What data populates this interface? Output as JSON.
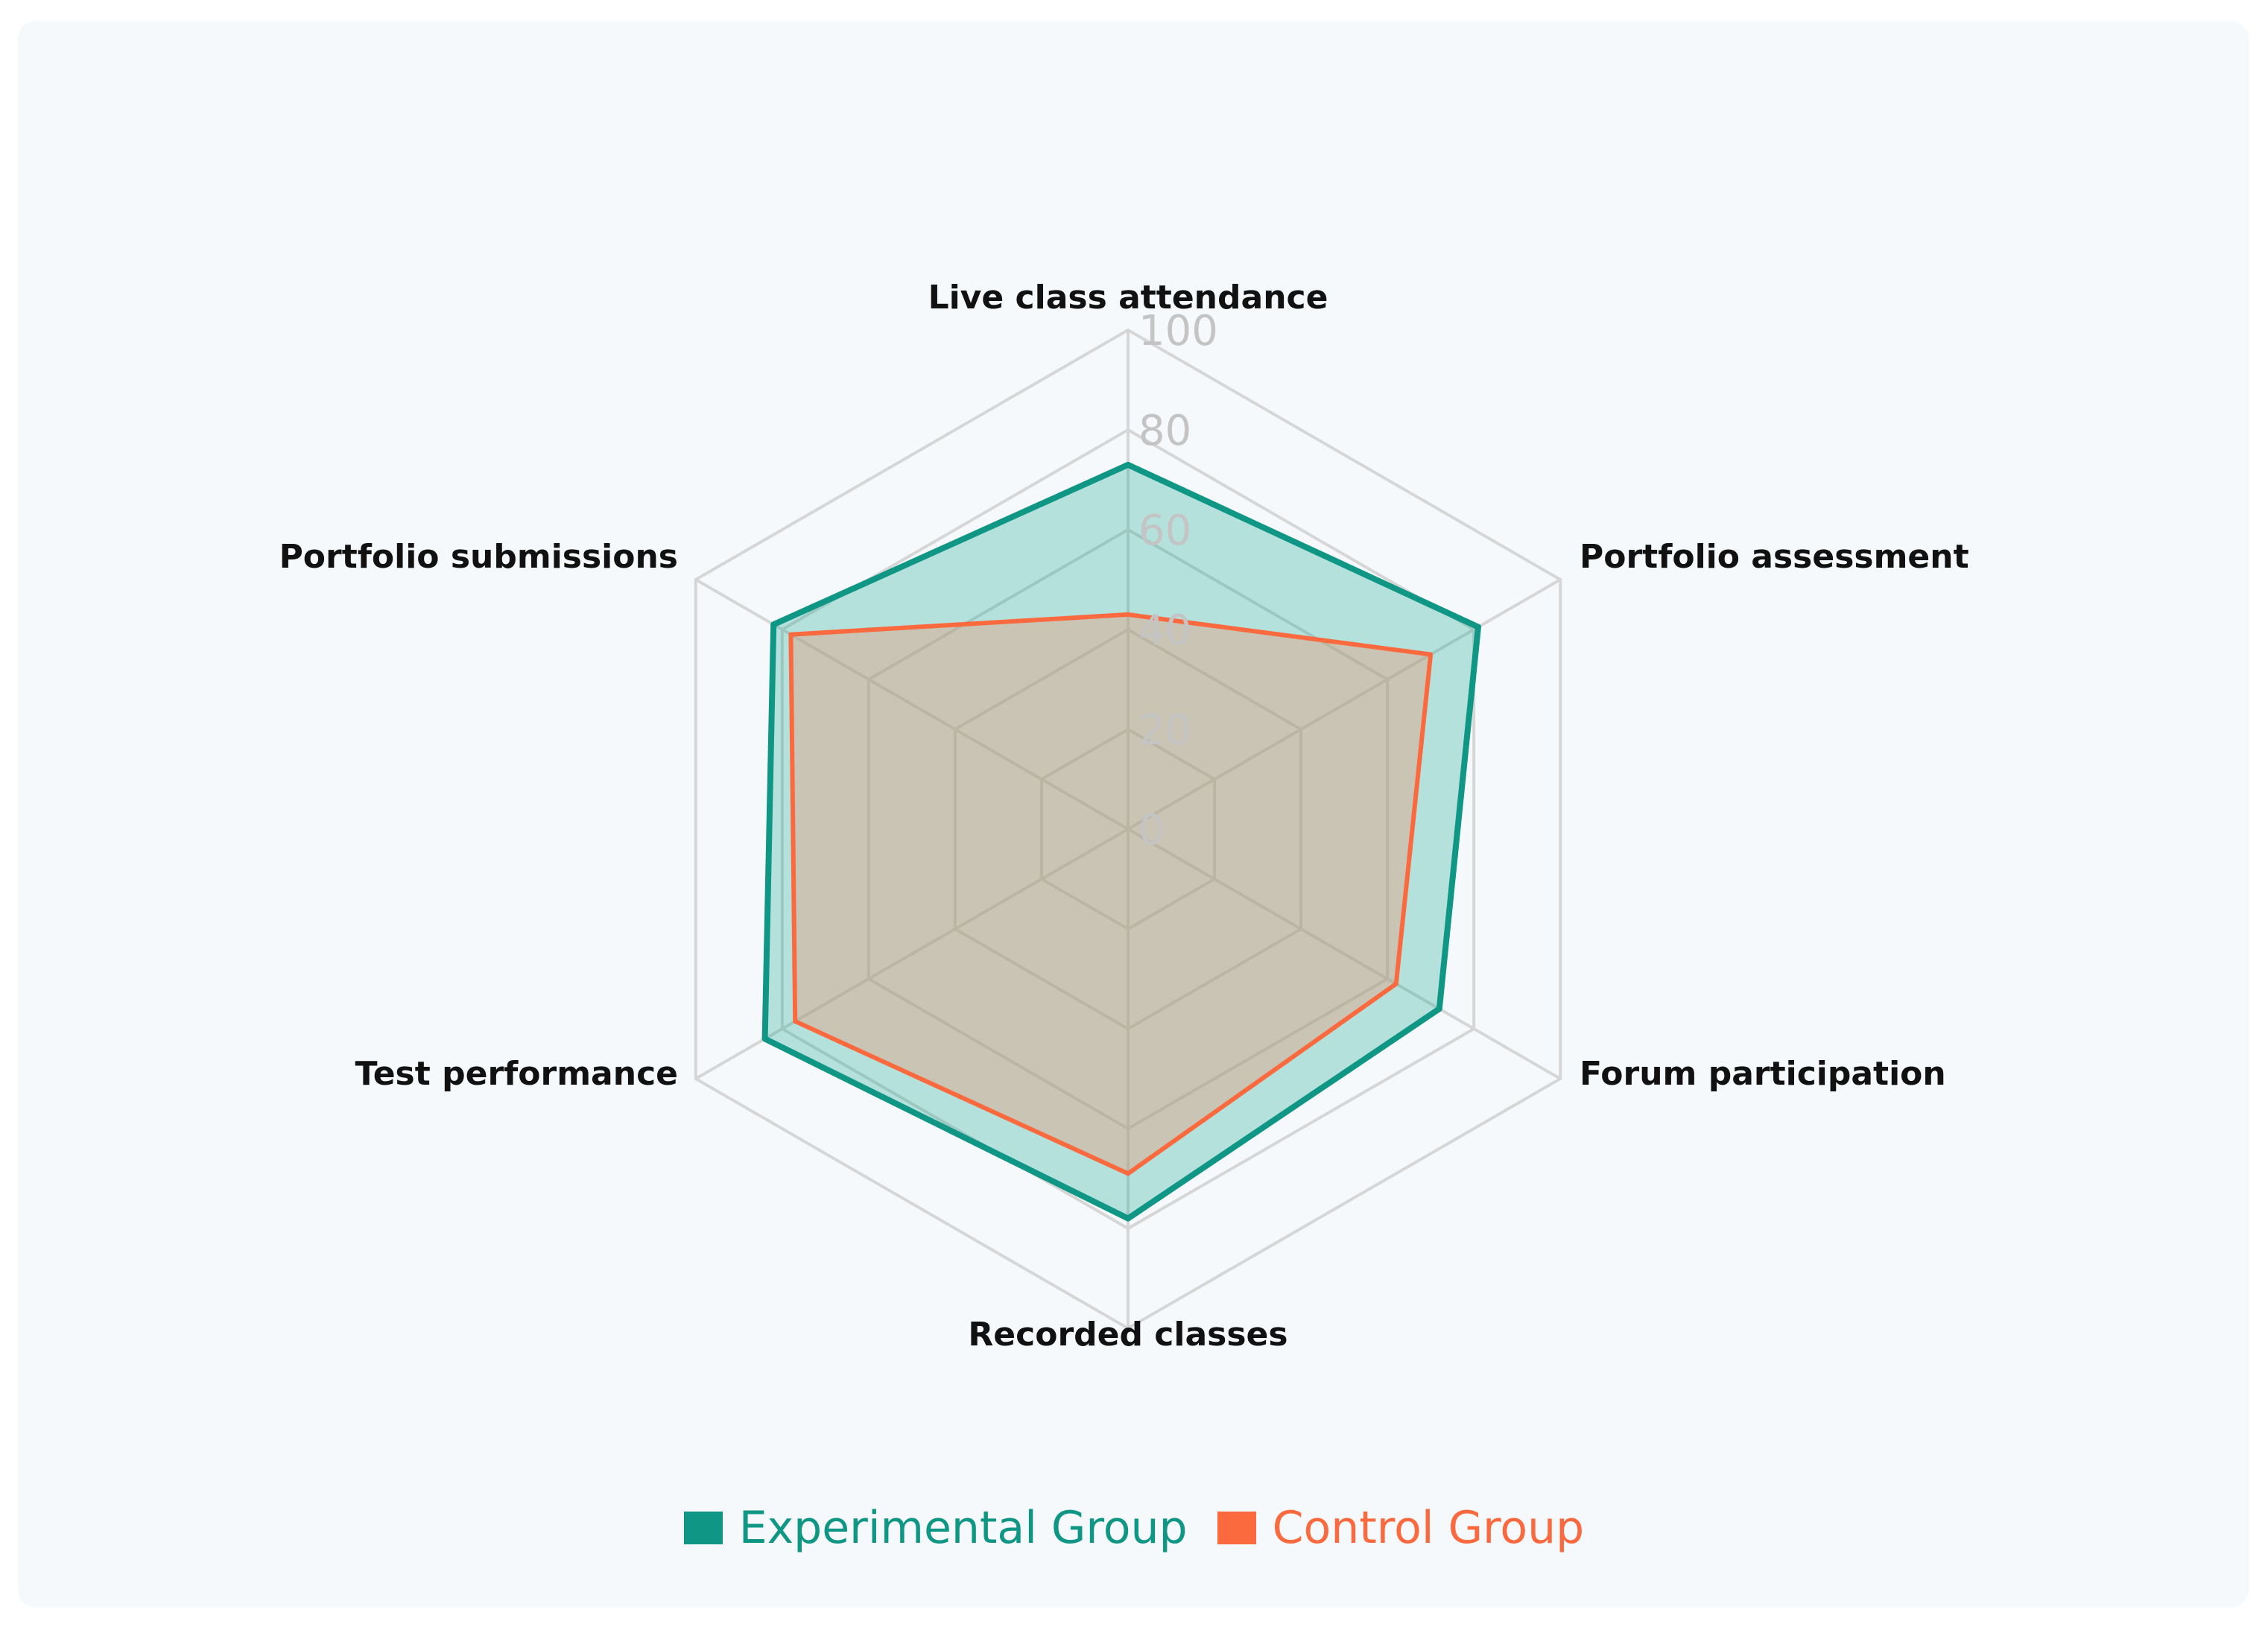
{
  "chart_data": {
    "type": "radar",
    "axes": [
      "Live class attendance",
      "Portfolio assessment",
      "Forum participation",
      "Recorded classes",
      "Test performance",
      "Portfolio submissions"
    ],
    "ticks": [
      "0",
      "20",
      "40",
      "60",
      "80",
      "100"
    ],
    "range": [
      0,
      100
    ],
    "grid": true,
    "legend_position": "bottom",
    "series": [
      {
        "name": "Experimental Group",
        "color": "#0f9684",
        "fill": "rgba(26,168,150,0.30)",
        "values": [
          73,
          81,
          72,
          78,
          84,
          82
        ]
      },
      {
        "name": "Control Group",
        "color": "#fb6a3f",
        "fill": "rgba(232,152,120,0.40)",
        "values": [
          43,
          70,
          62,
          69,
          77,
          78
        ]
      }
    ]
  }
}
